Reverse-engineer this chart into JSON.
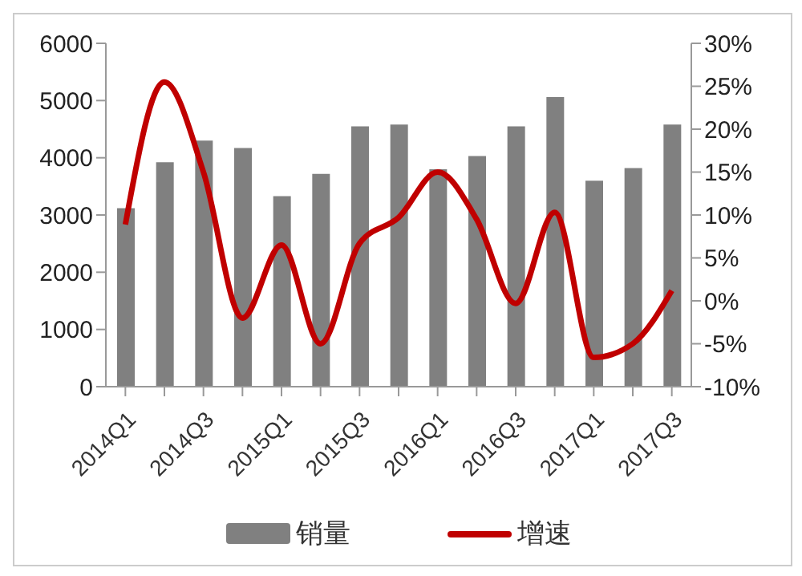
{
  "chart_data": {
    "type": "bar",
    "categories": [
      "2014Q1",
      null,
      "2014Q3",
      null,
      "2015Q1",
      null,
      "2015Q3",
      null,
      "2016Q1",
      null,
      "2016Q3",
      null,
      "2017Q1",
      null,
      "2017Q3"
    ],
    "series": [
      {
        "name": "销量",
        "color": "#808080",
        "values": [
          3120,
          3920,
          4300,
          4170,
          3330,
          3720,
          4550,
          4580,
          3800,
          4030,
          4550,
          5060,
          3600,
          3820,
          4580
        ]
      },
      {
        "name": "增速",
        "type": "line",
        "axis": "y2",
        "color": "#c00000",
        "values": [
          8.9,
          25.5,
          15,
          -2,
          6.5,
          -5,
          6.7,
          9.7,
          15,
          9.5,
          -0.3,
          10.3,
          -6.6,
          -5,
          1.2
        ]
      }
    ],
    "ylim": [
      0,
      6000
    ],
    "yticks": [
      0,
      1000,
      2000,
      3000,
      4000,
      5000,
      6000
    ],
    "y2lim": [
      -10,
      30
    ],
    "y2ticks": [
      {
        "value": -10,
        "label": "-10%"
      },
      {
        "value": -5,
        "label": "-5%"
      },
      {
        "value": 0,
        "label": "0%"
      },
      {
        "value": 5,
        "label": "5%"
      },
      {
        "value": 10,
        "label": "10%"
      },
      {
        "value": 15,
        "label": "15%"
      },
      {
        "value": 20,
        "label": "20%"
      },
      {
        "value": 25,
        "label": "25%"
      },
      {
        "value": 30,
        "label": "30%"
      }
    ],
    "grid": false,
    "legend": "bottom",
    "marker": "none",
    "line_style": "solid"
  }
}
